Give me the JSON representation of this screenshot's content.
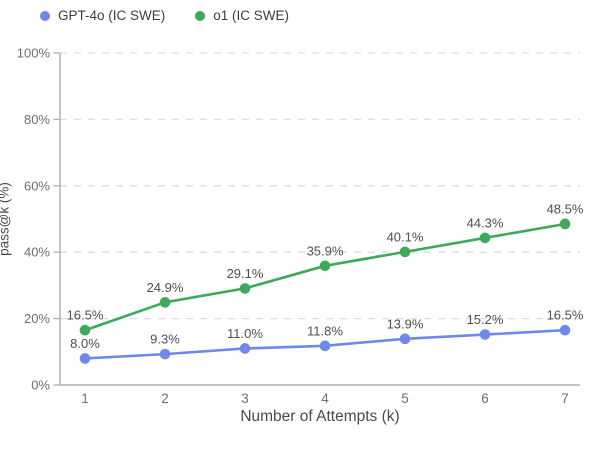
{
  "chart_data": {
    "type": "line",
    "title": "",
    "xlabel": "Number of Attempts (k)",
    "ylabel": "pass@k (%)",
    "x": [
      1,
      2,
      3,
      4,
      5,
      6,
      7
    ],
    "x_tick_labels": [
      "1",
      "2",
      "3",
      "4",
      "5",
      "6",
      "7"
    ],
    "y_ticks": [
      0,
      20,
      40,
      60,
      80,
      100
    ],
    "y_tick_labels": [
      "0%",
      "20%",
      "40%",
      "60%",
      "80%",
      "100%"
    ],
    "ylim": [
      0,
      100
    ],
    "xlim": [
      1,
      7
    ],
    "grid": "horizontal-dashed",
    "legend_position": "top-left",
    "series": [
      {
        "name": "GPT-4o (IC SWE)",
        "slug": "gpt-4o-ic-swe",
        "color": "#7088e9",
        "values": [
          8.0,
          9.3,
          11.0,
          11.8,
          13.9,
          15.2,
          16.5
        ],
        "point_labels": [
          "8.0%",
          "9.3%",
          "11.0%",
          "11.8%",
          "13.9%",
          "15.2%",
          "16.5%"
        ]
      },
      {
        "name": "o1 (IC SWE)",
        "slug": "o1-ic-swe",
        "color": "#3ea85c",
        "values": [
          16.5,
          24.9,
          29.1,
          35.9,
          40.1,
          44.3,
          48.5
        ],
        "point_labels": [
          "16.5%",
          "24.9%",
          "29.1%",
          "35.9%",
          "40.1%",
          "44.3%",
          "48.5%"
        ]
      }
    ],
    "style_colors": {
      "background": "#ffffff",
      "gridline": "#dedede",
      "axis": "#b0b0b0",
      "tick_label": "#6f6f6f",
      "data_label": "#4f4f4f",
      "axis_title": "#4a4a4a",
      "legend_text": "#3b3f42"
    }
  }
}
